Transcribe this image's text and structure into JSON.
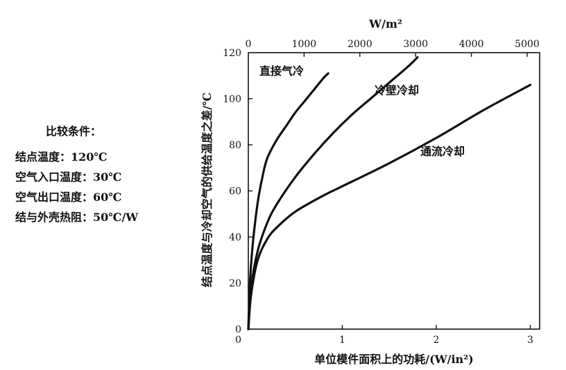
{
  "conditions": {
    "title": "比较条件：",
    "lines": [
      "结点温度：120℃",
      "空气入口温度：30℃",
      "空气出口温度：60℃",
      "结与外壳热阻：50℃/W"
    ]
  },
  "chart_data": {
    "type": "line",
    "xlabel": "单位模件面积上的功耗/(W/in²)",
    "ylabel": "结点温度与冷却空气的供给温度之差/℃",
    "x2label": "W/m²",
    "xlim": [
      0,
      3.2
    ],
    "ylim": [
      0,
      120
    ],
    "x2lim": [
      0,
      5000
    ],
    "xticks": [
      0,
      1,
      2,
      3
    ],
    "yticks": [
      0,
      20,
      40,
      60,
      80,
      100,
      120
    ],
    "x2ticks": [
      0,
      1000,
      2000,
      3000,
      4000,
      5000
    ],
    "grid": false,
    "series": [
      {
        "name": "直接气冷",
        "x": [
          0,
          0.02,
          0.05,
          0.1,
          0.15,
          0.2,
          0.3,
          0.4,
          0.5,
          0.6,
          0.7,
          0.8,
          0.85
        ],
        "y": [
          0,
          22,
          38,
          55,
          66,
          74,
          82,
          88,
          94,
          99,
          104,
          109,
          111
        ]
      },
      {
        "name": "冷壁冷却",
        "x": [
          0,
          0.03,
          0.1,
          0.2,
          0.3,
          0.5,
          0.7,
          0.9,
          1.1,
          1.3,
          1.5,
          1.7,
          1.8
        ],
        "y": [
          0,
          18,
          34,
          46,
          54,
          66,
          76,
          85,
          93,
          100,
          107,
          114,
          118
        ]
      },
      {
        "name": "通流冷却",
        "x": [
          0,
          0.03,
          0.1,
          0.2,
          0.3,
          0.5,
          0.8,
          1.0,
          1.5,
          2.0,
          2.5,
          3.0
        ],
        "y": [
          0,
          15,
          30,
          39,
          44,
          51,
          58,
          62,
          72,
          83,
          95,
          106
        ]
      }
    ],
    "annotations": [
      {
        "series": "直接气冷",
        "text": "直接气冷"
      },
      {
        "series": "冷壁冷却",
        "text": "冷壁冷却"
      },
      {
        "series": "通流冷却",
        "text": "通流冷却"
      }
    ]
  }
}
